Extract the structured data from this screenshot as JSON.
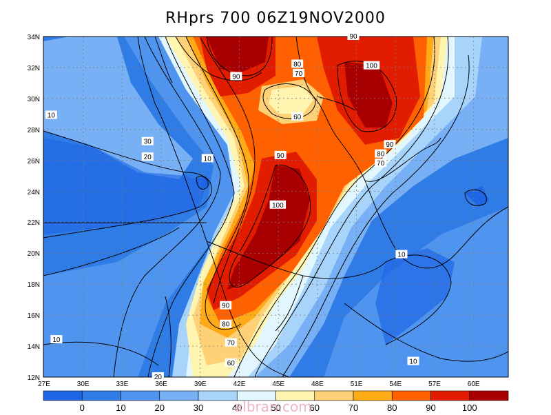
{
  "title": "RHprs 700 06Z19NOV2000",
  "watermark": "albran.com",
  "map": {
    "lat_labels": [
      "34N",
      "32N",
      "30N",
      "28N",
      "26N",
      "24N",
      "22N",
      "20N",
      "18N",
      "16N",
      "14N",
      "12N"
    ],
    "lon_labels": [
      "27E",
      "30E",
      "33E",
      "36E",
      "39E",
      "42E",
      "45E",
      "48E",
      "51E",
      "54E",
      "57E",
      "60E"
    ],
    "contour_labels": [
      {
        "text": "90",
        "lat": 31.4,
        "lon": 41.8
      },
      {
        "text": "80",
        "lat": 32.2,
        "lon": 46.5
      },
      {
        "text": "70",
        "lat": 31.6,
        "lon": 46.6
      },
      {
        "text": "60",
        "lat": 28.8,
        "lon": 46.5
      },
      {
        "text": "100",
        "lat": 32.1,
        "lon": 52.2
      },
      {
        "text": "90",
        "lat": 27.0,
        "lon": 53.6
      },
      {
        "text": "80",
        "lat": 26.4,
        "lon": 52.9
      },
      {
        "text": "70",
        "lat": 25.8,
        "lon": 52.9
      },
      {
        "text": "90",
        "lat": 26.3,
        "lon": 45.2
      },
      {
        "text": "100",
        "lat": 23.1,
        "lon": 45.0
      },
      {
        "text": "10",
        "lat": 28.9,
        "lon": 27.6
      },
      {
        "text": "30",
        "lat": 27.2,
        "lon": 35.0
      },
      {
        "text": "20",
        "lat": 26.2,
        "lon": 35.0
      },
      {
        "text": "10",
        "lat": 26.1,
        "lon": 39.6
      },
      {
        "text": "10",
        "lat": 19.9,
        "lon": 54.5
      },
      {
        "text": "90",
        "lat": 16.6,
        "lon": 41.0
      },
      {
        "text": "80",
        "lat": 15.4,
        "lon": 41.0
      },
      {
        "text": "70",
        "lat": 14.2,
        "lon": 41.4
      },
      {
        "text": "60",
        "lat": 12.9,
        "lon": 41.4
      },
      {
        "text": "10",
        "lat": 14.4,
        "lon": 28.0
      },
      {
        "text": "10",
        "lat": 13.0,
        "lon": 55.4
      },
      {
        "text": "20",
        "lat": 12.0,
        "lon": 35.8
      },
      {
        "text": "90",
        "lat": 34.0,
        "lon": 50.8
      }
    ]
  },
  "colorbar": {
    "levels": [
      "0",
      "10",
      "20",
      "30",
      "40",
      "50",
      "60",
      "70",
      "80",
      "90",
      "100"
    ],
    "colors": [
      "#1f66e6",
      "#2f7ce6",
      "#4f94ee",
      "#77b0f4",
      "#a8d4fb",
      "#e2f7fd",
      "#fff5b0",
      "#ffd177",
      "#ffaa17",
      "#ff6000",
      "#e21c00",
      "#a80000"
    ]
  }
}
